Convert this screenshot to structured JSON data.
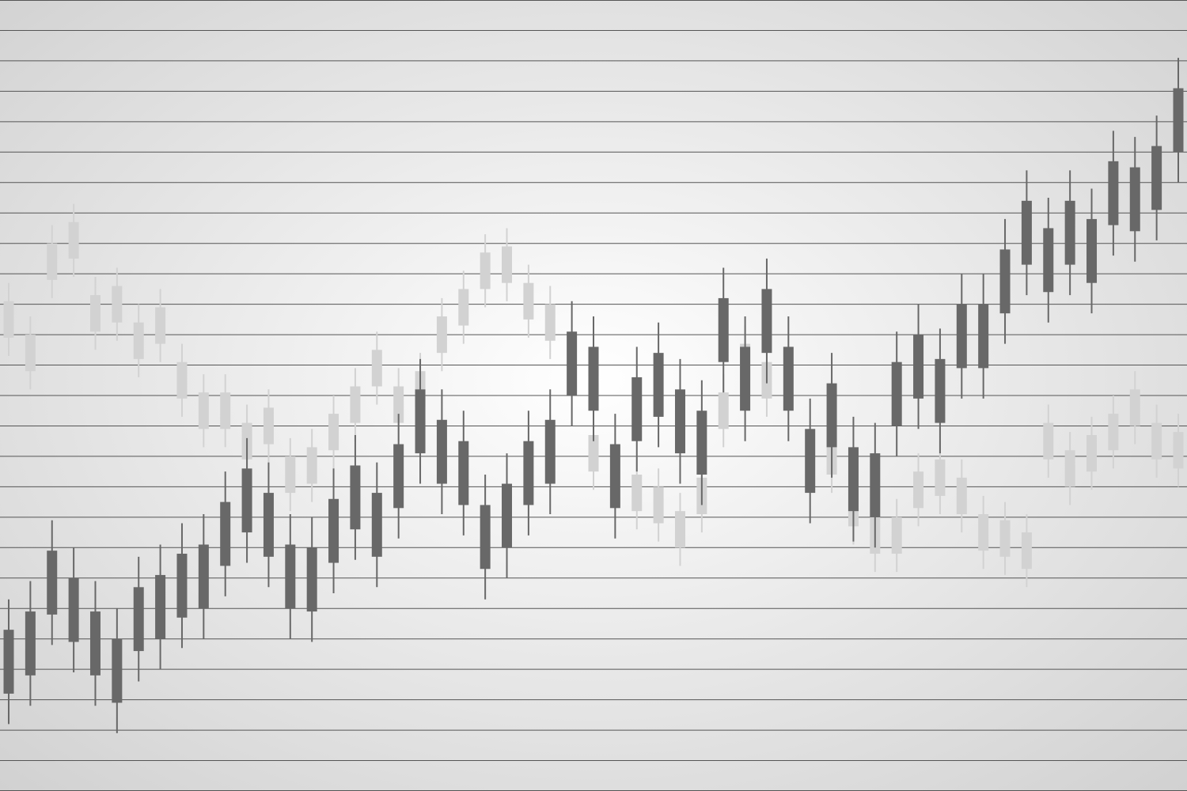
{
  "chart_data": {
    "type": "candlestick",
    "ylim": [
      0,
      26
    ],
    "yticks": [
      0,
      1,
      2,
      3,
      4,
      5,
      6,
      7,
      8,
      9,
      10,
      11,
      12,
      13,
      14,
      15,
      16,
      17,
      18,
      19,
      20,
      21,
      22,
      23,
      24,
      25,
      26
    ],
    "grid": true,
    "grid_color": "#555555",
    "tick_labels": false,
    "series": [
      {
        "color": "#d2d2d2",
        "open": [
          14.9,
          13.8,
          16.8,
          17.5,
          15.1,
          15.4,
          14.2,
          14.7,
          12.9,
          11.9,
          11.9,
          10.9,
          11.4,
          9.8,
          10.1,
          11.2,
          12.1,
          13.3,
          12.1,
          12.6,
          14.4,
          15.3,
          16.5,
          16.7,
          15.5,
          14.8,
          null,
          10.5,
          null,
          9.2,
          8.8,
          8.0,
          9.1,
          11.9,
          13.5,
          12.9,
          null,
          null,
          10.4,
          8.7,
          7.8,
          7.8,
          9.3,
          9.7,
          9.1,
          7.9,
          7.7,
          7.3,
          10.9,
          10.0,
          10.5,
          11.2,
          12.0,
          10.9,
          10.6
        ],
        "high": [
          16.7,
          15.6,
          18.6,
          19.3,
          16.9,
          17.2,
          16.0,
          16.5,
          14.7,
          13.7,
          13.7,
          12.7,
          13.2,
          11.6,
          11.9,
          13.0,
          13.9,
          15.1,
          13.9,
          14.4,
          16.2,
          17.1,
          18.3,
          18.5,
          17.3,
          16.6,
          null,
          12.3,
          null,
          11.0,
          10.6,
          9.8,
          10.9,
          13.7,
          15.3,
          14.7,
          null,
          null,
          12.2,
          10.5,
          9.6,
          9.6,
          11.1,
          11.5,
          10.9,
          9.7,
          9.5,
          9.1,
          12.7,
          11.8,
          12.3,
          13.0,
          13.8,
          12.7,
          12.4
        ],
        "low": [
          14.3,
          13.2,
          16.2,
          16.9,
          14.5,
          14.8,
          13.6,
          14.1,
          12.3,
          11.3,
          11.3,
          10.3,
          10.8,
          9.2,
          9.5,
          10.6,
          11.5,
          12.7,
          11.5,
          12.0,
          13.8,
          14.7,
          15.9,
          16.1,
          14.9,
          14.2,
          null,
          9.9,
          null,
          8.6,
          8.2,
          7.4,
          8.5,
          11.3,
          12.9,
          12.3,
          null,
          null,
          9.8,
          8.1,
          7.2,
          7.2,
          8.7,
          9.1,
          8.5,
          7.3,
          7.1,
          6.7,
          10.3,
          9.4,
          9.9,
          10.6,
          11.4,
          10.3,
          10.0
        ],
        "close": [
          16.1,
          15.0,
          18.0,
          18.7,
          16.3,
          16.6,
          15.4,
          15.9,
          14.1,
          13.1,
          13.1,
          12.1,
          12.6,
          11.0,
          11.3,
          12.4,
          13.3,
          14.5,
          13.3,
          13.8,
          15.6,
          16.5,
          17.7,
          17.9,
          16.7,
          16.0,
          null,
          11.7,
          null,
          10.4,
          10.0,
          9.2,
          10.3,
          13.1,
          14.7,
          14.1,
          null,
          null,
          11.6,
          9.9,
          9.0,
          9.0,
          10.5,
          10.9,
          10.3,
          9.1,
          8.9,
          8.5,
          12.1,
          11.2,
          11.7,
          12.4,
          13.2,
          12.1,
          11.8
        ]
      },
      {
        "color": "#686868",
        "open": [
          3.2,
          3.8,
          5.8,
          4.9,
          3.8,
          2.9,
          4.6,
          5.0,
          5.7,
          6.0,
          7.4,
          8.5,
          7.7,
          6.0,
          5.9,
          7.5,
          8.6,
          7.7,
          9.3,
          11.1,
          10.1,
          9.4,
          7.3,
          8.0,
          9.4,
          10.1,
          13.0,
          12.5,
          9.3,
          11.5,
          12.3,
          11.1,
          10.4,
          14.1,
          12.5,
          14.4,
          12.5,
          9.8,
          11.3,
          9.2,
          9.0,
          12.0,
          12.9,
          12.1,
          13.9,
          13.9,
          15.7,
          17.3,
          16.4,
          17.3,
          16.7,
          18.6,
          18.4,
          19.1,
          21.0
        ],
        "high": [
          6.3,
          6.9,
          8.9,
          8.0,
          6.9,
          6.0,
          7.7,
          8.1,
          8.8,
          9.1,
          10.5,
          11.6,
          10.8,
          9.1,
          9.0,
          10.6,
          11.7,
          10.8,
          12.4,
          14.2,
          13.2,
          12.5,
          10.4,
          11.1,
          12.5,
          13.2,
          16.1,
          15.6,
          12.4,
          14.6,
          15.4,
          14.2,
          13.5,
          17.2,
          15.6,
          17.5,
          15.6,
          12.9,
          14.4,
          12.3,
          12.1,
          15.1,
          16.0,
          15.2,
          17.0,
          17.0,
          18.8,
          20.4,
          19.5,
          20.4,
          19.8,
          21.7,
          21.5,
          22.2,
          24.1
        ],
        "low": [
          2.2,
          2.8,
          4.8,
          3.9,
          2.8,
          1.9,
          3.6,
          4.0,
          4.7,
          5.0,
          6.4,
          7.5,
          6.7,
          5.0,
          4.9,
          6.5,
          7.6,
          6.7,
          8.3,
          10.1,
          9.1,
          8.4,
          6.3,
          7.0,
          8.4,
          9.1,
          12.0,
          11.5,
          8.3,
          10.5,
          11.3,
          10.1,
          9.4,
          13.1,
          11.5,
          13.4,
          11.5,
          8.8,
          10.3,
          8.2,
          8.0,
          11.0,
          11.9,
          11.1,
          12.9,
          12.9,
          14.7,
          16.3,
          15.4,
          16.3,
          15.7,
          17.6,
          17.4,
          18.1,
          20.0
        ],
        "close": [
          5.3,
          5.9,
          7.9,
          7.0,
          5.9,
          5.0,
          6.7,
          7.1,
          7.8,
          8.1,
          9.5,
          10.6,
          9.8,
          8.1,
          8.0,
          9.6,
          10.7,
          9.8,
          11.4,
          13.2,
          12.2,
          11.5,
          9.4,
          10.1,
          11.5,
          12.2,
          15.1,
          14.6,
          11.4,
          13.6,
          14.4,
          13.2,
          12.5,
          16.2,
          14.6,
          16.5,
          14.6,
          11.9,
          13.4,
          11.3,
          11.1,
          14.1,
          15.0,
          14.2,
          16.0,
          16.0,
          17.8,
          19.4,
          18.5,
          19.4,
          18.8,
          20.7,
          20.5,
          21.2,
          23.1
        ]
      }
    ]
  }
}
